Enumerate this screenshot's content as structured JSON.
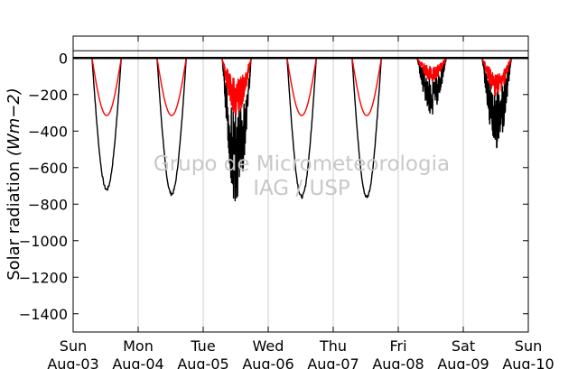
{
  "chart_data": {
    "type": "line",
    "title": "",
    "xlabel": "",
    "ylabel": "Solar radiation ($Wm{-2}$)",
    "ylabel_parts": {
      "text": "Solar radiation ",
      "math": "(Wm−2)"
    },
    "ylim": [
      -1500,
      120
    ],
    "yticks": [
      0,
      -200,
      -400,
      -600,
      -800,
      -1000,
      -1200,
      -1400
    ],
    "xticks": [
      {
        "day": "Sun",
        "date": "Aug-03"
      },
      {
        "day": "Mon",
        "date": "Aug-04"
      },
      {
        "day": "Tue",
        "date": "Aug-05"
      },
      {
        "day": "Wed",
        "date": "Aug-06"
      },
      {
        "day": "Thu",
        "date": "Aug-07"
      },
      {
        "day": "Fri",
        "date": "Aug-08"
      },
      {
        "day": "Sat",
        "date": "Aug-09"
      },
      {
        "day": "Sun",
        "date": "Aug-10"
      }
    ],
    "xlim_days": [
      0,
      7
    ],
    "grid": "vertical",
    "hline": 40,
    "colors": {
      "series_black": "#000000",
      "series_red": "#ff0000",
      "grid": "#cccccc",
      "watermark": "#c8c8c8"
    },
    "series": [
      {
        "color": "#000000",
        "daily_min": [
          {
            "day": "Aug-03",
            "min": -720
          },
          {
            "day": "Aug-04",
            "min": -745
          },
          {
            "day": "Aug-05",
            "min": -815
          },
          {
            "day": "Aug-06",
            "min": -760
          },
          {
            "day": "Aug-07",
            "min": -760
          },
          {
            "day": "Aug-08",
            "min": -310
          },
          {
            "day": "Aug-09",
            "min": -510
          }
        ]
      },
      {
        "color": "#ff0000",
        "daily_min": [
          {
            "day": "Aug-03",
            "min": -315
          },
          {
            "day": "Aug-04",
            "min": -315
          },
          {
            "day": "Aug-05",
            "min": -325
          },
          {
            "day": "Aug-06",
            "min": -315
          },
          {
            "day": "Aug-07",
            "min": -315
          },
          {
            "day": "Aug-08",
            "min": -130
          },
          {
            "day": "Aug-09",
            "min": -210
          }
        ]
      }
    ],
    "watermark": [
      "Grupo de Micrometeorologia",
      "IAG / USP"
    ]
  }
}
